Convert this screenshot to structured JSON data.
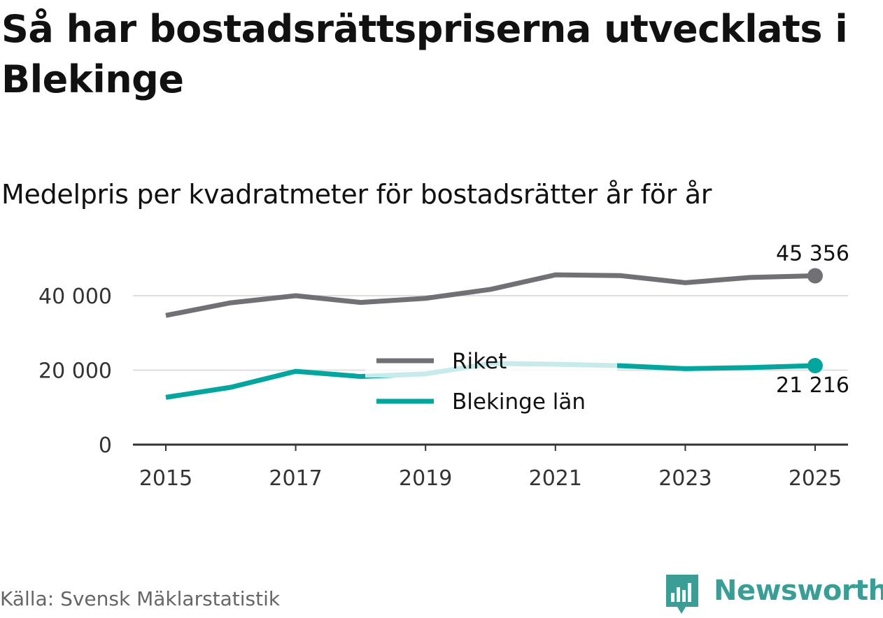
{
  "title": "Så har bostadsrättspriserna utvecklats i Blekinge",
  "subtitle": "Medelpris per kvadratmeter för bostadsrätter år för år",
  "source": "Källa: Svensk Mäklarstatistik",
  "brand": "Newsworthy",
  "colors": {
    "riket": "#707075",
    "blekinge": "#02a69e",
    "blekinge_faded": "#cfecea",
    "grid": "#dddddd",
    "axis": "#333333"
  },
  "chart_data": {
    "type": "line",
    "x": [
      2015,
      2016,
      2017,
      2018,
      2019,
      2020,
      2021,
      2022,
      2023,
      2024,
      2025
    ],
    "series": [
      {
        "name": "Riket",
        "values": [
          34700,
          38100,
          40000,
          38200,
          39300,
          41700,
          45600,
          45400,
          43500,
          44900,
          45356
        ]
      },
      {
        "name": "Blekinge län",
        "values": [
          12700,
          15400,
          19700,
          18300,
          19000,
          21800,
          21600,
          21200,
          20400,
          20700,
          21216
        ]
      }
    ],
    "yticks": [
      0,
      20000,
      40000
    ],
    "ytick_labels": [
      "0",
      "20 000",
      "40 000"
    ],
    "xticks": [
      2015,
      2017,
      2019,
      2021,
      2023,
      2025
    ],
    "xtick_labels": [
      "2015",
      "2017",
      "2019",
      "2021",
      "2023",
      "2025"
    ],
    "end_labels": [
      "45 356",
      "21 216"
    ],
    "ylim": [
      0,
      50000
    ],
    "legend": [
      "Riket",
      "Blekinge län"
    ],
    "legend_position": "center"
  }
}
